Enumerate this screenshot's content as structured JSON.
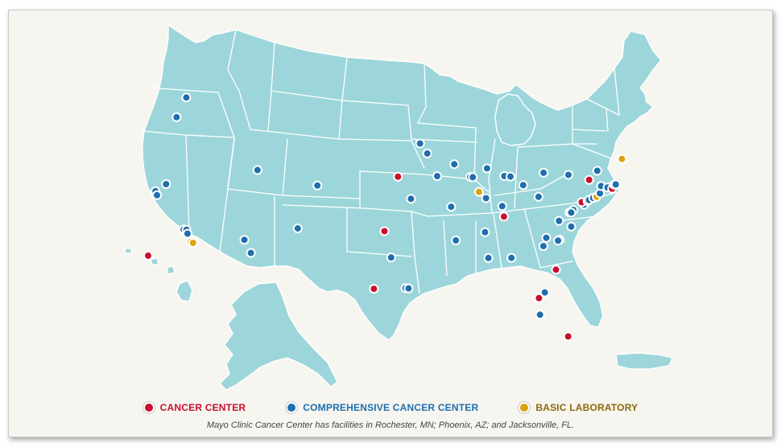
{
  "legend": {
    "cancer_center": {
      "label": "CANCER CENTER",
      "color": "#c8102e"
    },
    "comprehensive": {
      "label": "COMPREHENSIVE CANCER CENTER",
      "color": "#1f6fae"
    },
    "basic_lab": {
      "label": "BASIC LABORATORY",
      "color": "#d9a30f"
    }
  },
  "caption": "Mayo Clinic Cancer Center has facilities in Rochester, MN; Phoenix, AZ; and Jacksonville, FL.",
  "map_colors": {
    "land": "#9dd6da",
    "borders": "#ffffff",
    "background": "#f6f5f0"
  },
  "markers": [
    {
      "category": "comprehensive",
      "lon": -122.3,
      "lat": 47.6
    },
    {
      "category": "comprehensive",
      "lon": -122.7,
      "lat": 45.5
    },
    {
      "category": "comprehensive",
      "lon": -122.4,
      "lat": 37.8
    },
    {
      "category": "comprehensive",
      "lon": -121.5,
      "lat": 38.6
    },
    {
      "category": "comprehensive",
      "lon": -122.1,
      "lat": 37.4
    },
    {
      "category": "comprehensive",
      "lon": -118.3,
      "lat": 34.1
    },
    {
      "category": "comprehensive",
      "lon": -118.0,
      "lat": 34.1
    },
    {
      "category": "comprehensive",
      "lon": -117.8,
      "lat": 33.7
    },
    {
      "category": "comprehensive",
      "lon": -117.2,
      "lat": 32.9
    },
    {
      "category": "basic_lab",
      "lon": -117.25,
      "lat": 32.9
    },
    {
      "category": "basic_lab",
      "lon": -117.0,
      "lat": 32.8
    },
    {
      "category": "comprehensive",
      "lon": -111.9,
      "lat": 40.8
    },
    {
      "category": "comprehensive",
      "lon": -105.0,
      "lat": 39.7
    },
    {
      "category": "comprehensive",
      "lon": -111.9,
      "lat": 33.5
    },
    {
      "category": "comprehensive",
      "lon": -111.0,
      "lat": 32.2
    },
    {
      "category": "comprehensive",
      "lon": -106.6,
      "lat": 35.1
    },
    {
      "category": "cancer_center",
      "lon": -96.0,
      "lat": 41.3
    },
    {
      "category": "cancer_center",
      "lon": -97.5,
      "lat": 35.5
    },
    {
      "category": "comprehensive",
      "lon": -96.8,
      "lat": 32.8
    },
    {
      "category": "cancer_center",
      "lon": -98.5,
      "lat": 29.4
    },
    {
      "category": "comprehensive",
      "lon": -95.4,
      "lat": 29.7
    },
    {
      "category": "comprehensive",
      "lon": -95.1,
      "lat": 29.7
    },
    {
      "category": "comprehensive",
      "lon": -94.6,
      "lat": 39.1
    },
    {
      "category": "comprehensive",
      "lon": -93.3,
      "lat": 44.98
    },
    {
      "category": "comprehensive",
      "lon": -92.5,
      "lat": 44.0
    },
    {
      "category": "comprehensive",
      "lon": -89.4,
      "lat": 43.1
    },
    {
      "category": "comprehensive",
      "lon": -91.5,
      "lat": 41.7
    },
    {
      "category": "comprehensive",
      "lon": -90.2,
      "lat": 38.6
    },
    {
      "category": "comprehensive",
      "lon": -87.7,
      "lat": 41.9
    },
    {
      "category": "comprehensive",
      "lon": -87.4,
      "lat": 41.9
    },
    {
      "category": "basic_lab",
      "lon": -86.9,
      "lat": 40.4
    },
    {
      "category": "comprehensive",
      "lon": -86.2,
      "lat": 39.8
    },
    {
      "category": "comprehensive",
      "lon": -83.7,
      "lat": 42.3
    },
    {
      "category": "comprehensive",
      "lon": -83.0,
      "lat": 42.3
    },
    {
      "category": "comprehensive",
      "lon": -85.6,
      "lat": 42.96
    },
    {
      "category": "comprehensive",
      "lon": -84.5,
      "lat": 39.1
    },
    {
      "category": "comprehensive",
      "lon": -81.7,
      "lat": 41.5
    },
    {
      "category": "cancer_center",
      "lon": -84.5,
      "lat": 38.0
    },
    {
      "category": "comprehensive",
      "lon": -86.8,
      "lat": 36.2
    },
    {
      "category": "comprehensive",
      "lon": -90.0,
      "lat": 35.1
    },
    {
      "category": "comprehensive",
      "lon": -86.8,
      "lat": 33.5
    },
    {
      "category": "comprehensive",
      "lon": -84.4,
      "lat": 33.7
    },
    {
      "category": "comprehensive",
      "lon": -80.2,
      "lat": 40.4
    },
    {
      "category": "comprehensive",
      "lon": -79.0,
      "lat": 43.0
    },
    {
      "category": "comprehensive",
      "lon": -78.9,
      "lat": 36.0
    },
    {
      "category": "comprehensive",
      "lon": -79.1,
      "lat": 35.9
    },
    {
      "category": "comprehensive",
      "lon": -80.3,
      "lat": 36.1
    },
    {
      "category": "comprehensive",
      "lon": -80.8,
      "lat": 35.2
    },
    {
      "category": "comprehensive",
      "lon": -78.5,
      "lat": 38.0
    },
    {
      "category": "comprehensive",
      "lon": -77.3,
      "lat": 37.5
    },
    {
      "category": "comprehensive",
      "lon": -77.1,
      "lat": 39.0
    },
    {
      "category": "comprehensive",
      "lon": -76.6,
      "lat": 39.3
    },
    {
      "category": "comprehensive",
      "lon": -76.9,
      "lat": 39.0
    },
    {
      "category": "comprehensive",
      "lon": -75.2,
      "lat": 39.95
    },
    {
      "category": "cancer_center",
      "lon": -75.4,
      "lat": 40.2
    },
    {
      "category": "basic_lab",
      "lon": -74.7,
      "lat": 40.35
    },
    {
      "category": "comprehensive",
      "lon": -74.5,
      "lat": 40.5
    },
    {
      "category": "comprehensive",
      "lon": -73.95,
      "lat": 40.75
    },
    {
      "category": "basic_lab",
      "lon": -73.5,
      "lat": 40.9
    },
    {
      "category": "comprehensive",
      "lon": -73.0,
      "lat": 41.3
    },
    {
      "category": "cancer_center",
      "lon": -73.8,
      "lat": 42.65
    },
    {
      "category": "comprehensive",
      "lon": -76.1,
      "lat": 43.0
    },
    {
      "category": "comprehensive",
      "lon": -72.5,
      "lat": 43.7
    },
    {
      "category": "comprehensive",
      "lon": -72.6,
      "lat": 42.1
    },
    {
      "category": "comprehensive",
      "lon": -71.9,
      "lat": 42.0
    },
    {
      "category": "cancer_center",
      "lon": -71.4,
      "lat": 41.9
    },
    {
      "category": "basic_lab",
      "lon": -71.0,
      "lat": 42.35
    },
    {
      "category": "comprehensive",
      "lon": -70.8,
      "lat": 42.4
    },
    {
      "category": "basic_lab",
      "lon": -69.0,
      "lat": 45.2
    },
    {
      "category": "cancer_center",
      "lon": -80.0,
      "lat": 32.8
    },
    {
      "category": "comprehensive",
      "lon": -81.6,
      "lat": 30.3
    },
    {
      "category": "cancer_center",
      "lon": -82.3,
      "lat": 29.65
    },
    {
      "category": "comprehensive",
      "lon": -82.5,
      "lat": 27.9
    },
    {
      "category": "cancer_center",
      "lon": -80.2,
      "lat": 25.8
    }
  ],
  "markers_offmap": [
    {
      "category": "cancer_center",
      "region": "Hawaii"
    }
  ]
}
